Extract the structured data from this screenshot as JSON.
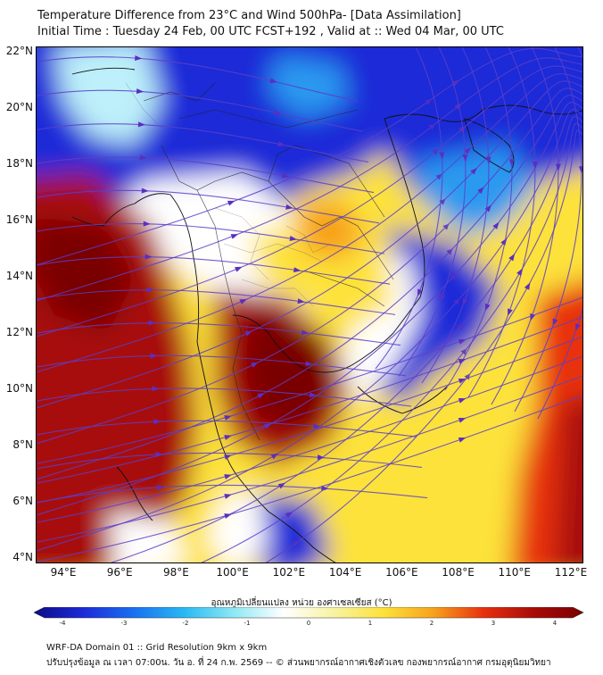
{
  "header": {
    "title": "Temperature Difference from 23°C and Wind 500hPa- [Data Assimilation]",
    "subtitle": "Initial Time : Tuesday 24 Feb, 00 UTC FCST+192 , Valid at ::  Wed 04 Mar, 00 UTC"
  },
  "map": {
    "lat_labels": [
      "22°N",
      "20°N",
      "18°N",
      "16°N",
      "14°N",
      "12°N",
      "10°N",
      "8°N",
      "6°N",
      "4°N"
    ],
    "lon_labels": [
      "94°E",
      "96°E",
      "98°E",
      "100°E",
      "102°E",
      "104°E",
      "106°E",
      "108°E",
      "110°E",
      "112°E"
    ],
    "lat_range": [
      4,
      22
    ],
    "lon_range": [
      93,
      112.3
    ],
    "layers": [
      "temperature-difference-shading",
      "500hPa-wind-streamlines",
      "coastlines",
      "country-boundaries",
      "province-boundaries"
    ]
  },
  "colorbar": {
    "title": "อุณหภูมิเปลี่ยนแปลง หน่วย องศาเซลเซียส (°C)",
    "tick_labels": [
      "-4",
      "-3",
      "-2",
      "-1",
      "0",
      "1",
      "2",
      "3",
      "4"
    ],
    "range": [
      -4,
      4
    ],
    "colors": [
      "#0c0d86",
      "#1d2bd8",
      "#1a70f0",
      "#28b8f4",
      "#8ee8f4",
      "#ffffff",
      "#f8f3a2",
      "#fde23a",
      "#f7a21c",
      "#e8300e",
      "#a80c08",
      "#7a0000"
    ]
  },
  "footer": {
    "line1": "WRF-DA Domain 01 :: Grid Resolution 9km x 9km",
    "line2": "ปรับปรุงข้อมูล ณ เวลา 07:00น. วัน อ. ที่ 24 ก.พ. 2569 -- © ส่วนพยากรณ์อากาศเชิงตัวเลข กองพยากรณ์อากาศ กรมอุตุนิยมวิทยา"
  }
}
